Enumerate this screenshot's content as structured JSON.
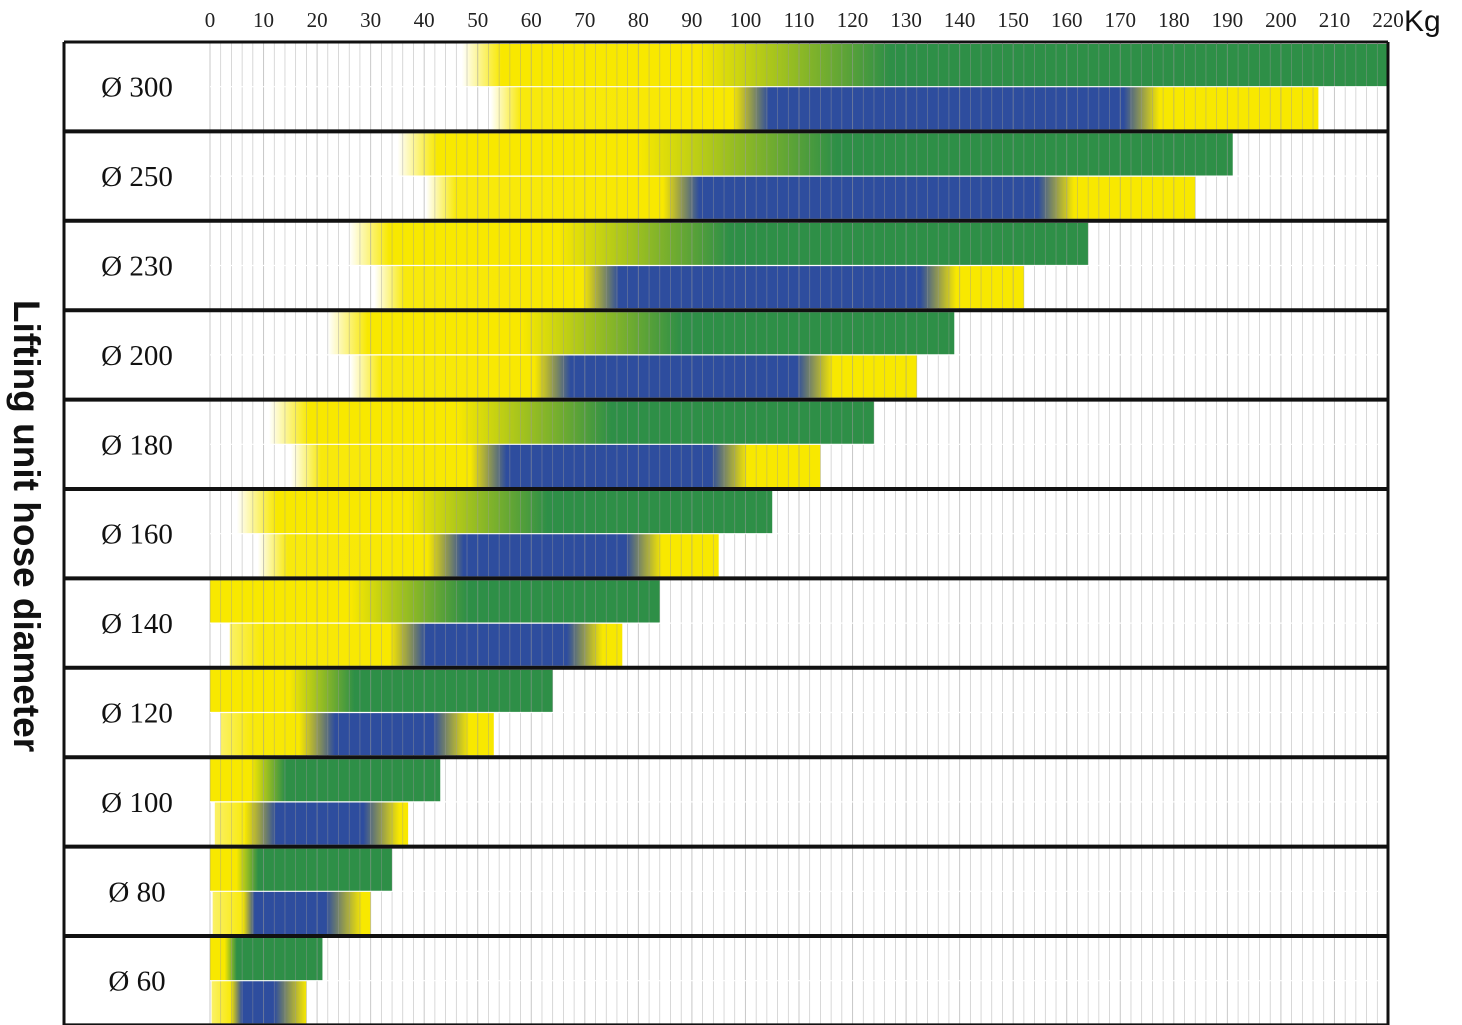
{
  "chart_data": {
    "type": "bar",
    "title": "",
    "xlabel": "",
    "x_unit": "Kg",
    "ylabel": "Lifting unit hose diameter",
    "xlim": [
      0,
      220
    ],
    "x_ticks": [
      "0",
      "10",
      "20",
      "30",
      "40",
      "50",
      "60",
      "70",
      "80",
      "90",
      "100",
      "110",
      "120",
      "130",
      "140",
      "150",
      "160",
      "170",
      "180",
      "190",
      "200",
      "210",
      "220"
    ],
    "grid": true,
    "legend": "none",
    "colors": {
      "yellow": "#f8e800",
      "green": "#2e8f47",
      "blue": "#2e4d9e",
      "grid": "#9a9a9a",
      "border": "#111111"
    },
    "rows": [
      {
        "label": "Ø 300",
        "upper_yellow_start": 47,
        "upper_green_start": 127,
        "upper_end": 220,
        "lower_blue_start": 101,
        "lower_blue_end": 174,
        "lower_end": 207
      },
      {
        "label": "Ø 250",
        "upper_yellow_start": 35,
        "upper_green_start": 117,
        "upper_end": 191,
        "lower_blue_start": 88,
        "lower_blue_end": 158,
        "lower_end": 184
      },
      {
        "label": "Ø 230",
        "upper_yellow_start": 26,
        "upper_green_start": 97,
        "upper_end": 164,
        "lower_blue_start": 73,
        "lower_blue_end": 136,
        "lower_end": 152
      },
      {
        "label": "Ø 200",
        "upper_yellow_start": 22,
        "upper_green_start": 88,
        "upper_end": 139,
        "lower_blue_start": 64,
        "lower_blue_end": 113,
        "lower_end": 132
      },
      {
        "label": "Ø 180",
        "upper_yellow_start": 11,
        "upper_green_start": 75,
        "upper_end": 124,
        "lower_blue_start": 52,
        "lower_blue_end": 97,
        "lower_end": 114
      },
      {
        "label": "Ø 160",
        "upper_yellow_start": 5,
        "upper_green_start": 63,
        "upper_end": 105,
        "lower_blue_start": 44,
        "lower_blue_end": 81,
        "lower_end": 95
      },
      {
        "label": "Ø 140",
        "upper_yellow_start": 0,
        "upper_green_start": 48,
        "upper_end": 84,
        "lower_blue_start": 37,
        "lower_blue_end": 70,
        "lower_end": 77
      },
      {
        "label": "Ø 120",
        "upper_yellow_start": 0,
        "upper_green_start": 27,
        "upper_end": 64,
        "lower_blue_start": 20,
        "lower_blue_end": 45,
        "lower_end": 53
      },
      {
        "label": "Ø 100",
        "upper_yellow_start": 0,
        "upper_green_start": 14,
        "upper_end": 43,
        "lower_blue_start": 9,
        "lower_blue_end": 32,
        "lower_end": 37
      },
      {
        "label": "Ø 80",
        "upper_yellow_start": 0,
        "upper_green_start": 9,
        "upper_end": 34,
        "lower_blue_start": 5,
        "lower_blue_end": 25,
        "lower_end": 30
      },
      {
        "label": "Ø 60",
        "upper_yellow_start": 0,
        "upper_green_start": 5,
        "upper_end": 21,
        "lower_blue_start": 3,
        "lower_blue_end": 15,
        "lower_end": 18
      }
    ]
  }
}
